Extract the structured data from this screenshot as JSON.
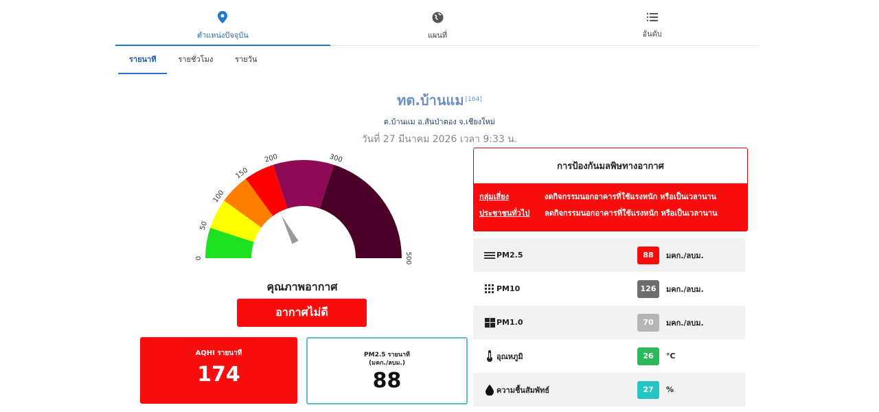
{
  "nav": {
    "items": [
      {
        "label": "ตำแหน่งปัจจุบัน",
        "icon": "location-pin-icon",
        "active": true
      },
      {
        "label": "แผนที่",
        "icon": "globe-icon",
        "active": false
      },
      {
        "label": "อันดับ",
        "icon": "list-icon",
        "active": false
      }
    ]
  },
  "subtabs": [
    "รายนาที",
    "รายชั่วโมง",
    "รายวัน"
  ],
  "station": {
    "name": "ทต.บ้านแม",
    "id": "[164]",
    "address": "ต.บ้านแม อ.สันป่าตอง จ.เชียงใหม่",
    "datetime": "วันที่ 27 มีนาคม 2026 เวลา 9:33 น."
  },
  "gauge": {
    "ticks": [
      "0",
      "50",
      "100",
      "150",
      "200",
      "300",
      "500"
    ],
    "value": 174,
    "colors": [
      "#1ee01e",
      "#ffff00",
      "#ff7e00",
      "#ff0000",
      "#8f0a55",
      "#4a0027"
    ]
  },
  "air_quality": {
    "title": "คุณภาพอากาศ",
    "status": "อากาศไม่ดี"
  },
  "aqhi_card": {
    "title": "AQHI รายนาที",
    "value": "174"
  },
  "pm_card": {
    "title": "PM2.5 รายนาที",
    "unit": "(มคก./ลบม.)",
    "value": "88"
  },
  "protection": {
    "title": "การป้องกันมลพิษทางอากาศ",
    "rows": [
      {
        "group": "กลุ่มเสี่ยง",
        "advice": "งดกิจกรรมนอกอาคารที่ใช้แรงหนัก หรือเป็นเวลานาน"
      },
      {
        "group": "ประชาชนทั่วไป",
        "advice": "ลดกิจกรรมนอกอาคารที่ใช้แรงหนัก หรือเป็นเวลานาน"
      }
    ]
  },
  "pollutants": [
    {
      "icon": "lines-icon",
      "name": "PM2.5",
      "value": "88",
      "unit": "มคก./ลบม.",
      "color": "#f70d0d"
    },
    {
      "icon": "dots-grid-icon",
      "name": "PM10",
      "value": "126",
      "unit": "มคก./ลบม.",
      "color": "#6e6e6e"
    },
    {
      "icon": "windows-icon",
      "name": "PM1.0",
      "value": "70",
      "unit": "มคก./ลบม.",
      "color": "#b5b5b5"
    },
    {
      "icon": "thermometer-icon",
      "name": "อุณหภูมิ",
      "value": "26",
      "unit": "°C",
      "color": "#2eb85c"
    },
    {
      "icon": "water-drop-icon",
      "name": "ความชื้นสัมพัทธ์",
      "value": "27",
      "unit": "%",
      "color": "#27c4c4"
    }
  ]
}
